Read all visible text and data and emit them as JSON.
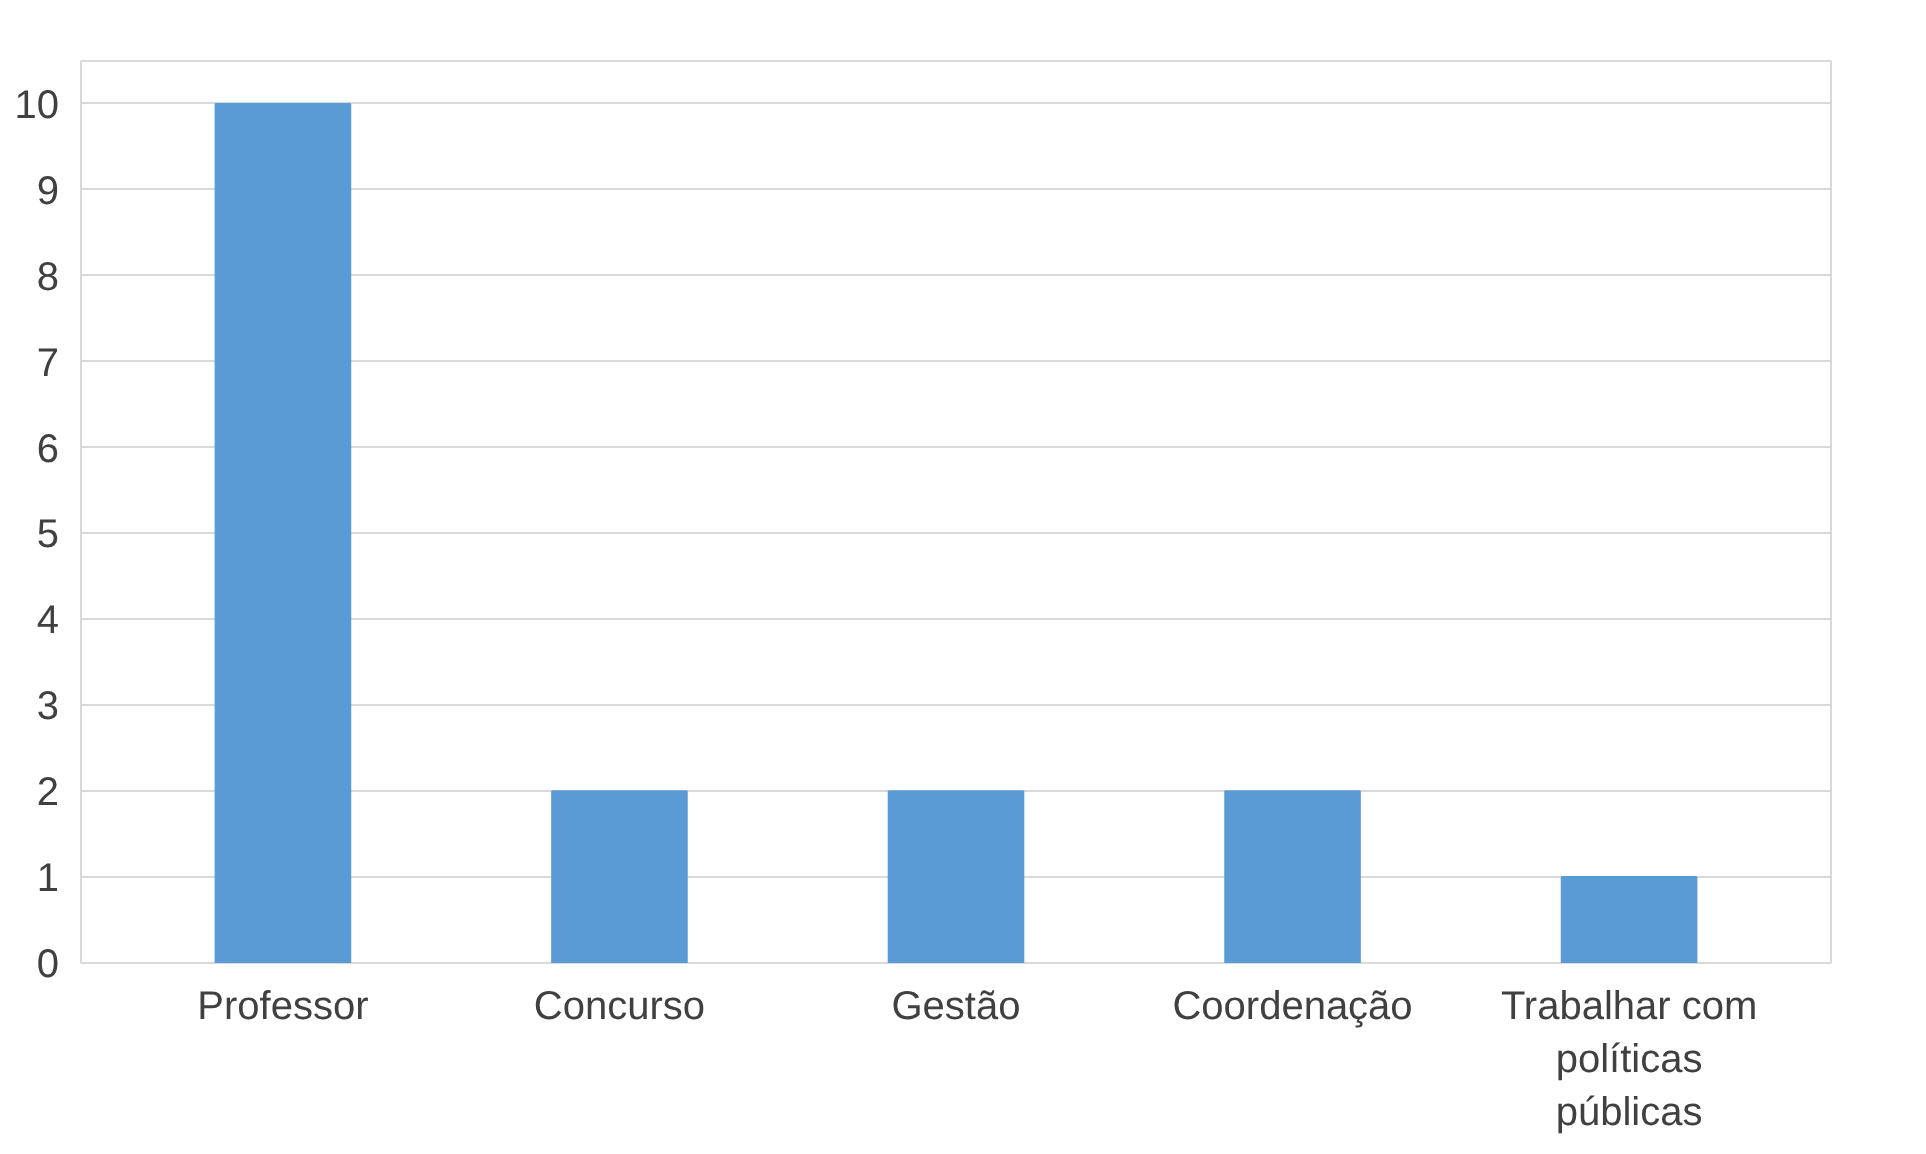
{
  "chart_data": {
    "type": "bar",
    "categories": [
      "Professor",
      "Concurso",
      "Gestão",
      "Coordenação",
      "Trabalhar com políticas públicas"
    ],
    "values": [
      10,
      2,
      2,
      2,
      1
    ],
    "color": "#5b9bd5",
    "ylim": [
      0,
      10.5
    ],
    "yticks": [
      0,
      1,
      2,
      3,
      4,
      5,
      6,
      7,
      8,
      9,
      10
    ],
    "grid": "y"
  }
}
